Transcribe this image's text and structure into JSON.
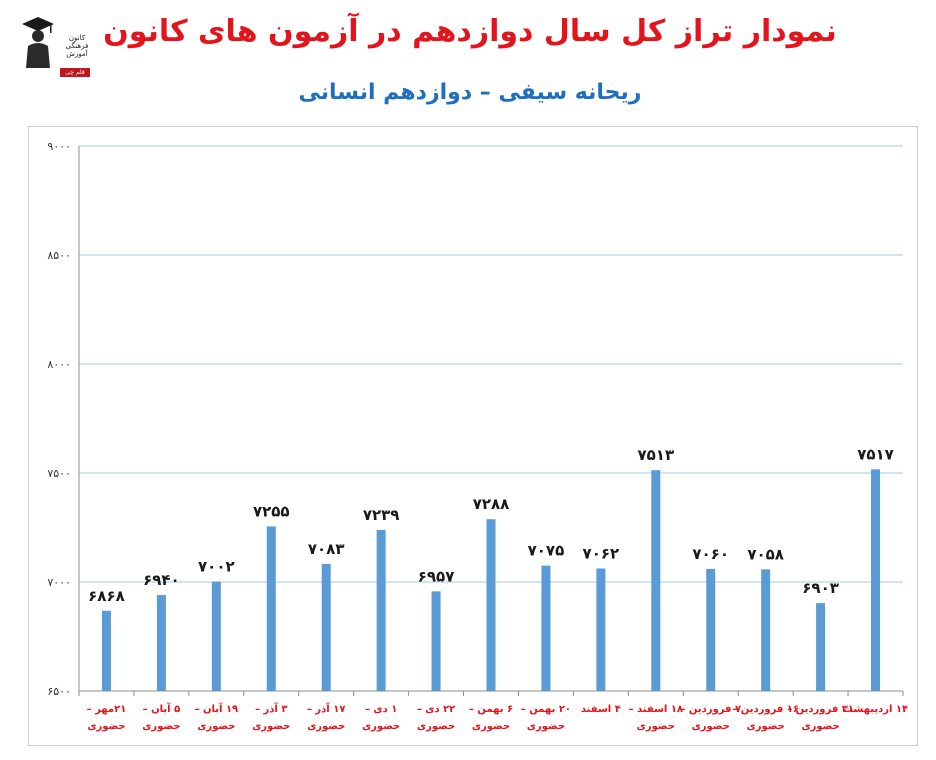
{
  "logo": {
    "text_lines": [
      "کانون",
      "فرهنگی",
      "آموزش"
    ],
    "badge": "قلم چی"
  },
  "chart_data": {
    "type": "bar",
    "title": "نمودار تراز کل سال دوازدهم در آزمون های کانون",
    "subtitle": "ریحانه سیفی – دوازدهم انسانی",
    "ylim": [
      6500,
      9000
    ],
    "yticks": [
      6500,
      7000,
      7500,
      8000,
      8500,
      9000
    ],
    "ytick_labels": [
      "۶۵۰۰",
      "۷۰۰۰",
      "۷۵۰۰",
      "۸۰۰۰",
      "۸۵۰۰",
      "۹۰۰۰"
    ],
    "grid": true,
    "colors": {
      "bar": "#5b9bd5",
      "grid": "#a6c8e6",
      "axis": "#8c8c8c",
      "category": "#e3141b",
      "value_label": "#1a1a1a"
    },
    "categories": [
      {
        "line1": "۲۱مهر –",
        "line2": "حضوری"
      },
      {
        "line1": "۵ آبان –",
        "line2": "حضوری"
      },
      {
        "line1": "۱۹ آبان –",
        "line2": "حضوری"
      },
      {
        "line1": "۳ آذر –",
        "line2": "حضوری"
      },
      {
        "line1": "۱۷ آذر –",
        "line2": "حضوری"
      },
      {
        "line1": "۱ دی –",
        "line2": "حضوری"
      },
      {
        "line1": "۲۲ دی –",
        "line2": "حضوری"
      },
      {
        "line1": "۶ بهمن –",
        "line2": "حضوری"
      },
      {
        "line1": "۲۰ بهمن –",
        "line2": "حضوری"
      },
      {
        "line1": "۴ اسفند",
        "line2": ""
      },
      {
        "line1": "۱۸ اسفند –",
        "line2": "حضوری"
      },
      {
        "line1": "۷ فروردین –",
        "line2": "حضوری"
      },
      {
        "line1": "۱۶ فروردین –",
        "line2": "حضوری"
      },
      {
        "line1": "۳۱ فروردین –",
        "line2": "حضوری"
      },
      {
        "line1": "۱۴ اردیبهشت",
        "line2": ""
      }
    ],
    "values": [
      6868,
      6940,
      7002,
      7255,
      7083,
      7239,
      6957,
      7288,
      7075,
      7062,
      7513,
      7060,
      7058,
      6903,
      7517
    ],
    "value_labels": [
      "۶۸۶۸",
      "۶۹۴۰",
      "۷۰۰۲",
      "۷۲۵۵",
      "۷۰۸۳",
      "۷۲۳۹",
      "۶۹۵۷",
      "۷۲۸۸",
      "۷۰۷۵",
      "۷۰۶۲",
      "۷۵۱۳",
      "۷۰۶۰",
      "۷۰۵۸",
      "۶۹۰۳",
      "۷۵۱۷"
    ]
  }
}
